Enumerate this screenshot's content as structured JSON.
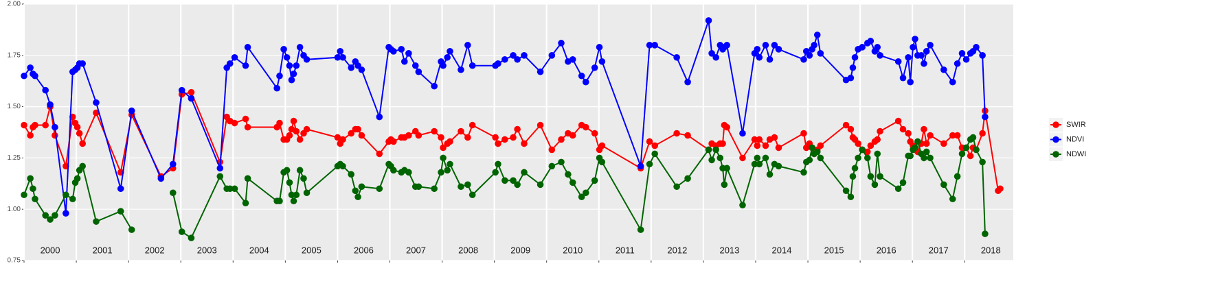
{
  "chart_data": {
    "type": "line",
    "x": [
      2000.0,
      2000.12,
      2000.17,
      2000.21,
      2000.41,
      2000.5,
      2000.59,
      2000.8,
      2000.93,
      2000.98,
      2001.02,
      2001.06,
      2001.12,
      2001.38,
      2001.85,
      2002.06,
      2002.62,
      2002.85,
      2003.02,
      2003.2,
      2003.75,
      2003.88,
      2003.94,
      2004.03,
      2004.24,
      2004.28,
      2004.84,
      2004.89,
      2004.97,
      2005.03,
      2005.08,
      2005.12,
      2005.16,
      2005.21,
      2005.28,
      2005.35,
      2005.41,
      2006.0,
      2006.05,
      2006.1,
      2006.26,
      2006.34,
      2006.39,
      2006.46,
      2006.8,
      2006.98,
      2007.02,
      2007.07,
      2007.22,
      2007.28,
      2007.36,
      2007.49,
      2007.55,
      2007.85,
      2007.98,
      2008.02,
      2008.1,
      2008.15,
      2008.36,
      2008.49,
      2008.58,
      2009.02,
      2009.07,
      2009.2,
      2009.36,
      2009.44,
      2009.57,
      2009.88,
      2010.1,
      2010.28,
      2010.41,
      2010.5,
      2010.67,
      2010.75,
      2010.92,
      2011.01,
      2011.06,
      2011.8,
      2011.97,
      2012.07,
      2012.49,
      2012.7,
      2013.1,
      2013.16,
      2013.24,
      2013.32,
      2013.37,
      2013.4,
      2013.45,
      2013.75,
      2013.98,
      2014.03,
      2014.07,
      2014.19,
      2014.27,
      2014.36,
      2014.44,
      2014.92,
      2014.97,
      2015.03,
      2015.08,
      2015.12,
      2015.18,
      2015.24,
      2015.73,
      2015.82,
      2015.86,
      2015.9,
      2015.96,
      2016.04,
      2016.14,
      2016.2,
      2016.28,
      2016.33,
      2016.38,
      2016.73,
      2016.82,
      2016.92,
      2016.96,
      2017.01,
      2017.05,
      2017.1,
      2017.17,
      2017.22,
      2017.27,
      2017.34,
      2017.6,
      2017.77,
      2017.86,
      2017.95,
      2018.03,
      2018.11,
      2018.16,
      2018.22,
      2018.34,
      2018.39,
      2018.64,
      2018.68
    ],
    "series": [
      {
        "name": "SWIR",
        "color": "#ff0000",
        "values": [
          1.41,
          1.36,
          1.4,
          1.41,
          1.41,
          1.5,
          1.36,
          1.21,
          1.45,
          1.42,
          1.4,
          1.37,
          1.32,
          1.47,
          1.18,
          1.46,
          1.16,
          1.2,
          1.56,
          1.57,
          1.23,
          1.45,
          1.43,
          1.42,
          1.44,
          1.4,
          1.4,
          1.42,
          1.34,
          1.34,
          1.36,
          1.39,
          1.43,
          1.38,
          1.34,
          1.37,
          1.39,
          1.35,
          1.32,
          1.34,
          1.37,
          1.39,
          1.39,
          1.36,
          1.27,
          1.33,
          1.34,
          1.33,
          1.35,
          1.35,
          1.36,
          1.38,
          1.36,
          1.38,
          1.35,
          1.3,
          1.32,
          1.33,
          1.38,
          1.35,
          1.41,
          1.35,
          1.32,
          1.34,
          1.35,
          1.39,
          1.32,
          1.41,
          1.29,
          1.34,
          1.37,
          1.36,
          1.41,
          1.4,
          1.37,
          1.29,
          1.31,
          1.2,
          1.33,
          1.31,
          1.37,
          1.36,
          1.29,
          1.32,
          1.31,
          1.32,
          1.32,
          1.41,
          1.4,
          1.25,
          1.34,
          1.31,
          1.34,
          1.31,
          1.34,
          1.35,
          1.3,
          1.37,
          1.3,
          1.32,
          1.3,
          1.27,
          1.29,
          1.31,
          1.41,
          1.39,
          1.35,
          1.34,
          1.32,
          1.29,
          1.28,
          1.31,
          1.33,
          1.34,
          1.38,
          1.43,
          1.39,
          1.37,
          1.33,
          1.31,
          1.29,
          1.28,
          1.32,
          1.39,
          1.32,
          1.36,
          1.32,
          1.36,
          1.36,
          1.3,
          1.3,
          1.26,
          1.3,
          1.29,
          1.37,
          1.48,
          1.09,
          1.1
        ]
      },
      {
        "name": "NDVI",
        "color": "#0000ff",
        "values": [
          1.65,
          1.69,
          1.66,
          1.65,
          1.58,
          1.51,
          1.4,
          0.98,
          1.67,
          1.68,
          1.69,
          1.71,
          1.71,
          1.52,
          1.1,
          1.48,
          1.15,
          1.22,
          1.58,
          1.54,
          1.2,
          1.69,
          1.71,
          1.74,
          1.7,
          1.79,
          1.59,
          1.65,
          1.78,
          1.74,
          1.7,
          1.63,
          1.66,
          1.7,
          1.79,
          1.75,
          1.73,
          1.74,
          1.77,
          1.74,
          1.69,
          1.72,
          1.7,
          1.68,
          1.45,
          1.79,
          1.78,
          1.77,
          1.78,
          1.72,
          1.76,
          1.7,
          1.67,
          1.6,
          1.72,
          1.7,
          1.74,
          1.77,
          1.68,
          1.8,
          1.7,
          1.7,
          1.71,
          1.73,
          1.75,
          1.73,
          1.75,
          1.67,
          1.75,
          1.81,
          1.72,
          1.73,
          1.65,
          1.62,
          1.69,
          1.79,
          1.72,
          1.21,
          1.8,
          1.8,
          1.74,
          1.62,
          1.92,
          1.76,
          1.74,
          1.8,
          1.78,
          1.79,
          1.8,
          1.37,
          1.76,
          1.78,
          1.74,
          1.8,
          1.73,
          1.8,
          1.78,
          1.73,
          1.77,
          1.75,
          1.78,
          1.8,
          1.85,
          1.76,
          1.63,
          1.64,
          1.69,
          1.74,
          1.78,
          1.79,
          1.81,
          1.82,
          1.77,
          1.79,
          1.75,
          1.72,
          1.64,
          1.74,
          1.62,
          1.79,
          1.83,
          1.75,
          1.75,
          1.71,
          1.77,
          1.8,
          1.68,
          1.62,
          1.71,
          1.76,
          1.73,
          1.76,
          1.77,
          1.79,
          1.75,
          1.45,
          null,
          null
        ]
      },
      {
        "name": "NDWI",
        "color": "#006400",
        "values": [
          1.07,
          1.15,
          1.1,
          1.05,
          0.97,
          0.95,
          0.97,
          1.07,
          1.05,
          1.13,
          1.15,
          1.19,
          1.21,
          0.94,
          0.99,
          0.9,
          null,
          1.08,
          0.89,
          0.86,
          1.16,
          1.1,
          1.1,
          1.1,
          1.03,
          1.15,
          1.04,
          1.04,
          1.18,
          1.19,
          1.13,
          1.07,
          1.04,
          1.07,
          1.19,
          1.15,
          1.08,
          1.21,
          1.22,
          1.21,
          1.17,
          1.09,
          1.06,
          1.11,
          1.1,
          1.22,
          1.21,
          1.19,
          1.18,
          1.19,
          1.18,
          1.11,
          1.11,
          1.1,
          1.18,
          1.25,
          1.19,
          1.22,
          1.11,
          1.12,
          1.07,
          1.18,
          1.22,
          1.14,
          1.14,
          1.12,
          1.18,
          1.12,
          1.21,
          1.23,
          1.17,
          1.13,
          1.06,
          1.08,
          1.14,
          1.25,
          1.23,
          0.9,
          1.22,
          1.27,
          1.11,
          1.15,
          1.29,
          1.24,
          1.29,
          1.25,
          1.2,
          1.12,
          1.2,
          1.02,
          1.22,
          1.25,
          1.22,
          1.25,
          1.17,
          1.22,
          1.21,
          1.18,
          1.23,
          1.24,
          1.3,
          1.27,
          1.28,
          1.25,
          1.09,
          1.06,
          1.16,
          1.2,
          1.25,
          1.29,
          1.25,
          1.16,
          1.12,
          1.27,
          1.16,
          1.1,
          1.13,
          1.26,
          1.26,
          1.29,
          1.3,
          1.33,
          1.27,
          1.25,
          1.28,
          1.25,
          1.12,
          1.05,
          1.16,
          1.27,
          1.3,
          1.34,
          1.35,
          1.29,
          1.23,
          0.88,
          null,
          null
        ]
      }
    ],
    "xlim": [
      2000,
      2018.93
    ],
    "xticks": [
      2000,
      2001,
      2002,
      2003,
      2004,
      2005,
      2006,
      2007,
      2008,
      2009,
      2010,
      2011,
      2012,
      2013,
      2014,
      2015,
      2016,
      2017,
      2018
    ],
    "ylim": [
      0.75,
      2.0
    ],
    "yticks": [
      {
        "value": 0.75,
        "label": "0.75"
      },
      {
        "value": 1.0,
        "label": "1.00"
      },
      {
        "value": 1.25,
        "label": "1.25"
      },
      {
        "value": 1.5,
        "label": "1.50"
      },
      {
        "value": 1.75,
        "label": "1.75"
      },
      {
        "value": 2.0,
        "label": "2.00"
      }
    ],
    "grid": true,
    "legend": "right"
  }
}
